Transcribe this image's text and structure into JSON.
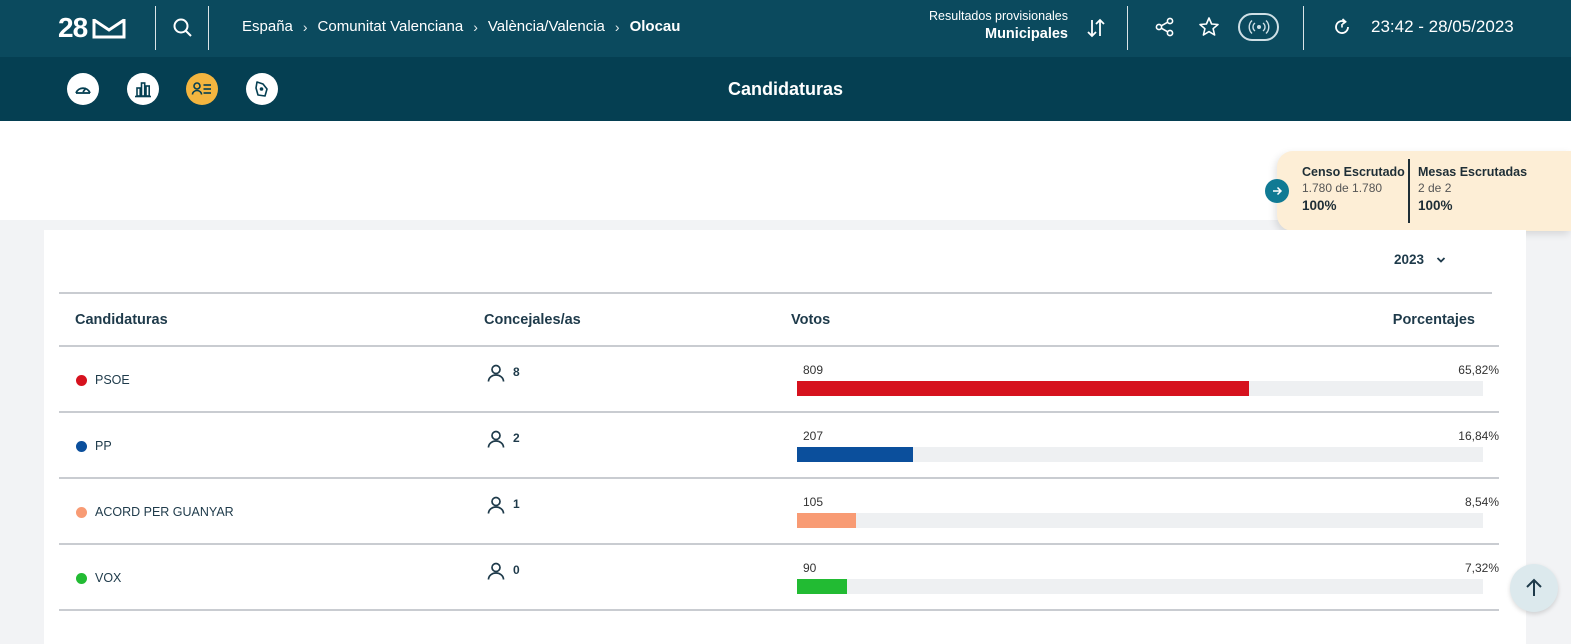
{
  "header": {
    "logo_number": "28",
    "breadcrumbs": [
      "España",
      "Comunitat Valenciana",
      "València/Valencia",
      "Olocau"
    ],
    "results_subtitle": "Resultados provisionales",
    "results_title": "Municipales",
    "datetime": "23:42 - 28/05/2023"
  },
  "subheader": {
    "title": "Candidaturas",
    "nav_icons": [
      "gauge-icon",
      "bar-chart-icon",
      "candidates-icon",
      "map-icon"
    ],
    "active_index": 2
  },
  "summary": {
    "censo_label": "Censo Escrutado",
    "censo_detail": "1.780 de 1.780",
    "censo_pct": "100%",
    "mesas_label": "Mesas Escrutadas",
    "mesas_detail": "2 de 2",
    "mesas_pct": "100%"
  },
  "table": {
    "year": "2023",
    "headers": {
      "party": "Candidaturas",
      "seats": "Concejales/as",
      "votes": "Votos",
      "pct": "Porcentajes"
    },
    "rows": [
      {
        "name": "PSOE",
        "color": "#d6121e",
        "seats": "8",
        "votes": "809",
        "pct": "65,82%",
        "fill_pct": 65.82
      },
      {
        "name": "PP",
        "color": "#0b4f9c",
        "seats": "2",
        "votes": "207",
        "pct": "16,84%",
        "fill_pct": 16.84
      },
      {
        "name": "ACORD PER GUANYAR",
        "color": "#f89b74",
        "seats": "1",
        "votes": "105",
        "pct": "8,54%",
        "fill_pct": 8.54
      },
      {
        "name": "VOX",
        "color": "#22bb33",
        "seats": "0",
        "votes": "90",
        "pct": "7,32%",
        "fill_pct": 7.32
      }
    ]
  },
  "colors": {
    "topbar": "#0b4a5e",
    "subbar": "#053f52",
    "active_nav": "#f3b53f",
    "summary_bg": "#fdeed6"
  }
}
